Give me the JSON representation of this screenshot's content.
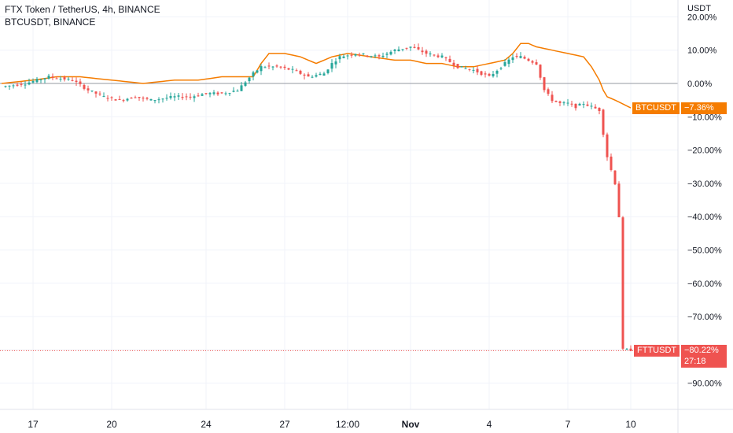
{
  "header": {
    "title": "FTX Token / TetherUS, 4h, BINANCE",
    "compare": "BTCUSDT, BINANCE"
  },
  "axis_unit": "USDT",
  "colors": {
    "up": "#26a69a",
    "down": "#ef5350",
    "compare": "#f57c00",
    "grid": "#f0f3fa",
    "text": "#131722"
  },
  "labels": {
    "btc_name": "BTCUSDT",
    "btc_value": "−7.36%",
    "ftt_name": "FTTUSDT",
    "ftt_value": "−80.22%",
    "countdown": "27:18"
  },
  "chart_data": {
    "type": "line",
    "title": "FTX Token / TetherUS, 4h, BINANCE",
    "y_unit": "%",
    "ylim": [
      -92,
      21
    ],
    "y_ticks": [
      "20.00%",
      "10.00%",
      "0.00%",
      "−10.00%",
      "−20.00%",
      "−30.00%",
      "−40.00%",
      "−50.00%",
      "−60.00%",
      "−70.00%",
      "−80.00%",
      "−90.00%"
    ],
    "y_tick_values": [
      20,
      10,
      0,
      -10,
      -20,
      -30,
      -40,
      -50,
      -60,
      -70,
      -80,
      -90
    ],
    "x_ticks": [
      "17",
      "20",
      "24",
      "27",
      "12:00",
      "Nov",
      "4",
      "7",
      "10"
    ],
    "x_tick_index": [
      8,
      28,
      52,
      72,
      88,
      104,
      124,
      144,
      160
    ],
    "x_count": 168,
    "grid": true,
    "series": [
      {
        "name": "FTTUSDT",
        "style": "candlestick",
        "last_value": -80.22,
        "anchors_x": [
          0,
          6,
          12,
          18,
          22,
          26,
          30,
          34,
          38,
          44,
          48,
          52,
          56,
          60,
          64,
          66,
          70,
          74,
          78,
          82,
          84,
          86,
          90,
          96,
          100,
          104,
          108,
          112,
          116,
          120,
          124,
          128,
          130,
          132,
          136,
          138,
          140,
          142,
          144,
          146,
          148,
          150,
          152,
          154,
          156,
          157,
          158,
          160
        ],
        "anchors_y": [
          -1,
          0,
          2,
          1,
          -2,
          -4,
          -5,
          -4,
          -5,
          -4,
          -4,
          -3,
          -3,
          -2,
          3,
          5,
          5,
          4,
          2,
          3,
          6,
          8,
          9,
          8,
          10,
          11,
          9,
          8,
          5,
          4,
          2,
          6,
          8,
          8,
          6,
          -2,
          -5,
          -6,
          -6,
          -7,
          -6,
          -7,
          -8,
          -22,
          -30,
          -40,
          -80,
          -80
        ]
      },
      {
        "name": "BTCUSDT",
        "style": "line",
        "last_value": -7.36,
        "anchors_x": [
          0,
          8,
          14,
          20,
          28,
          36,
          44,
          50,
          56,
          64,
          66,
          68,
          70,
          72,
          76,
          80,
          84,
          88,
          94,
          100,
          104,
          108,
          112,
          116,
          120,
          124,
          128,
          130,
          132,
          134,
          136,
          140,
          144,
          148,
          150,
          152,
          153,
          154,
          156,
          160
        ],
        "anchors_y": [
          0,
          1,
          2,
          2,
          1,
          0,
          1,
          1,
          2,
          2,
          6,
          9,
          9,
          9,
          8,
          6,
          8,
          9,
          8,
          7,
          7,
          6,
          6,
          5,
          5,
          6,
          7,
          9,
          12,
          12,
          11,
          10,
          9,
          8,
          5,
          1,
          -2,
          -4,
          -5,
          -7.36
        ]
      }
    ]
  }
}
